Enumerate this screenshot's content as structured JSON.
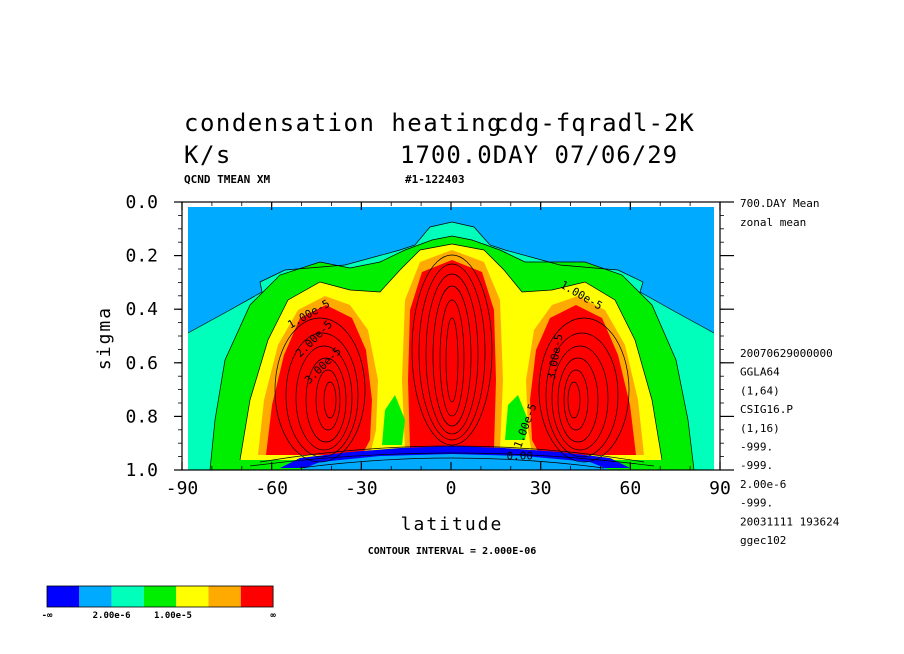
{
  "header": {
    "title_line1": "condensation heating",
    "title_run": "cdg-fqradl-2K",
    "units": "K/s",
    "time_stamp": "1700.0DAY 07/06/29",
    "var_code": "QCND TMEAN XM",
    "record_id": "#1-122403"
  },
  "side_info": {
    "top": [
      "700.DAY Mean",
      "zonal mean"
    ],
    "bottom": [
      "20070629000000",
      "GGLA64",
      "(1,64)",
      "CSIG16.P",
      "(1,16)",
      "-999.",
      "-999.",
      "2.00e-6",
      "-999.",
      "20031111 193624",
      "ggec102"
    ]
  },
  "contour_interval": "CONTOUR INTERVAL = 2.000E-06",
  "chart_data": {
    "type": "heatmap",
    "xlabel": "latitude",
    "ylabel": "sigma",
    "xlim": [
      -90,
      90
    ],
    "ylim": [
      1.0,
      0.0
    ],
    "x_ticks": [
      -90,
      -60,
      -30,
      0,
      30,
      60,
      90
    ],
    "x_tick_labels": [
      "-90",
      "-60",
      "-30",
      "0",
      "30",
      "60",
      "90"
    ],
    "y_ticks": [
      0.0,
      0.2,
      0.4,
      0.6,
      0.8,
      1.0
    ],
    "y_tick_labels": [
      "0.0",
      "0.2",
      "0.4",
      "0.6",
      "0.8",
      "1.0"
    ],
    "contour_labels": [
      {
        "text": "1.00e-5",
        "lat": -47,
        "sigma": 0.43,
        "angle": -30
      },
      {
        "text": "2.00e-5",
        "lat": -45,
        "sigma": 0.52,
        "angle": -45
      },
      {
        "text": "3.00e-5",
        "lat": -42,
        "sigma": 0.62,
        "angle": -45
      },
      {
        "text": "1.00e-5",
        "lat": 43,
        "sigma": 0.36,
        "angle": 30
      },
      {
        "text": "3.00e-5",
        "lat": 36,
        "sigma": 0.58,
        "angle": -80
      },
      {
        "text": "1.00e-5",
        "lat": 26,
        "sigma": 0.84,
        "angle": -70
      },
      {
        "text": "0.00",
        "lat": 23,
        "sigma": 0.96,
        "angle": 0
      }
    ],
    "colorbar": {
      "colors": [
        "#0000ff",
        "#00aaff",
        "#00ffbb",
        "#00ee00",
        "#ffff00",
        "#ffaa00",
        "#ff0000"
      ],
      "labels": [
        "-∞",
        "2.00e-6",
        "1.00e-5",
        "∞"
      ]
    }
  }
}
